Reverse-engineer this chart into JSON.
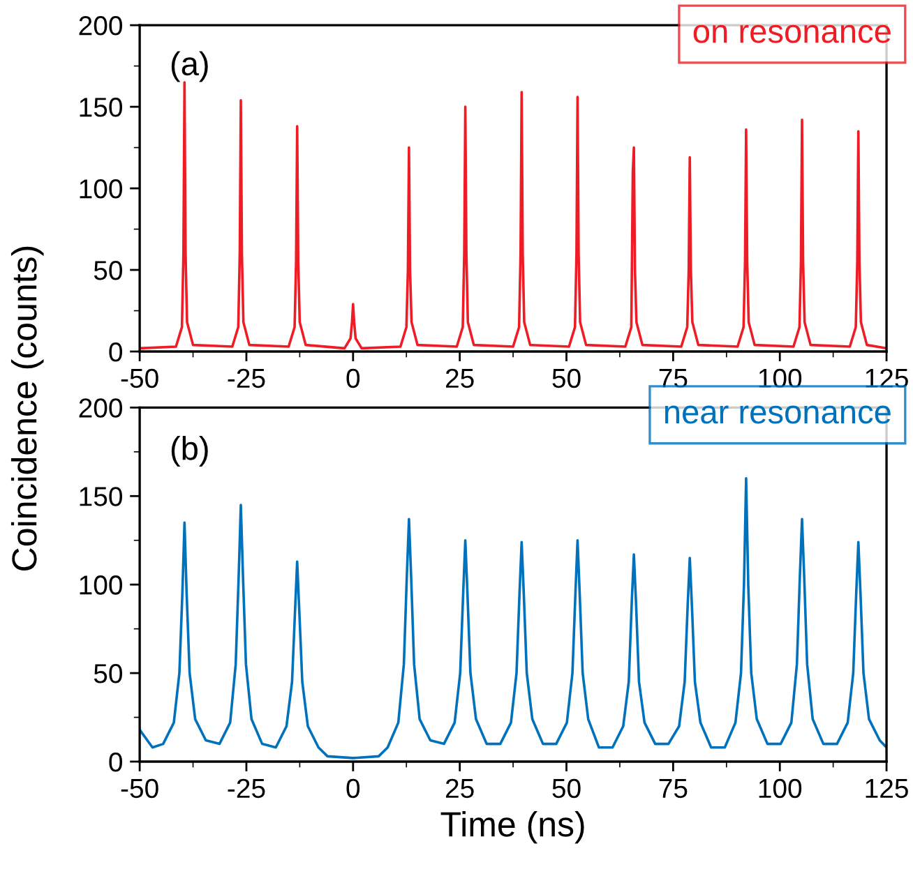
{
  "chart_data": [
    {
      "type": "line",
      "ylabel": "Coincidence (counts)",
      "annotations": [
        "(a)"
      ],
      "legend": "top right",
      "grid": false,
      "xlim": [
        -50,
        125
      ],
      "xticks": [
        -50,
        -25,
        0,
        25,
        50,
        75,
        100,
        125
      ],
      "ylim": [
        0,
        200
      ],
      "yticks": [
        0,
        50,
        100,
        150,
        200
      ],
      "series": [
        {
          "name": "on resonance",
          "color": "#ee1c25",
          "x": [
            -50,
            -41.5,
            -40.1,
            -39.75,
            -39.5,
            -39.25,
            -38.9,
            -37.5,
            -28.3,
            -26.9,
            -26.55,
            -26.3,
            -26.05,
            -25.7,
            -24.3,
            -15.1,
            -13.7,
            -13.35,
            -13.1,
            -12.85,
            -12.5,
            -11.1,
            -2,
            -0.6,
            -0.25,
            0,
            0.25,
            0.6,
            2,
            11.1,
            12.5,
            12.85,
            13.1,
            13.35,
            13.7,
            15.1,
            24.3,
            25.7,
            26.05,
            26.3,
            26.55,
            26.9,
            28.3,
            37.5,
            38.9,
            39.25,
            39.5,
            39.75,
            40.1,
            41.5,
            50.6,
            52.0,
            52.35,
            52.6,
            52.85,
            53.2,
            54.6,
            63.8,
            65.2,
            65.55,
            65.8,
            66.05,
            66.4,
            67.8,
            76.9,
            78.3,
            78.65,
            78.9,
            79.15,
            79.5,
            80.9,
            90.1,
            91.5,
            91.85,
            92.1,
            92.35,
            92.7,
            94.1,
            103.2,
            104.6,
            104.95,
            105.2,
            105.45,
            105.8,
            107.2,
            116.4,
            117.8,
            118.15,
            118.4,
            118.65,
            119.0,
            120.4,
            125
          ],
          "values": [
            2,
            3,
            15,
            60,
            165,
            60,
            18,
            4,
            3,
            15,
            60,
            154,
            60,
            18,
            4,
            3,
            15,
            55,
            138,
            55,
            18,
            4,
            2,
            8,
            18,
            29,
            18,
            8,
            2,
            3,
            15,
            50,
            125,
            50,
            18,
            4,
            3,
            15,
            60,
            150,
            60,
            18,
            4,
            3,
            15,
            60,
            159,
            60,
            18,
            4,
            3,
            15,
            60,
            156,
            60,
            18,
            4,
            3,
            15,
            110,
            125,
            50,
            18,
            4,
            3,
            15,
            50,
            119,
            50,
            18,
            4,
            3,
            15,
            55,
            136,
            55,
            18,
            4,
            3,
            15,
            55,
            142,
            55,
            18,
            4,
            3,
            15,
            55,
            135,
            55,
            18,
            4,
            2
          ]
        }
      ]
    },
    {
      "type": "line",
      "xlabel": "Time (ns)",
      "annotations": [
        "(b)"
      ],
      "legend": "top right",
      "grid": false,
      "xlim": [
        -50,
        125
      ],
      "xticks": [
        -50,
        -25,
        0,
        25,
        50,
        75,
        100,
        125
      ],
      "ylim": [
        0,
        200
      ],
      "yticks": [
        0,
        50,
        100,
        150,
        200
      ],
      "series": [
        {
          "name": "near resonance",
          "color": "#0072bc",
          "x": [
            -50,
            -47,
            -44.5,
            -42,
            -40.7,
            -40,
            -39.5,
            -39,
            -38.3,
            -37,
            -34.5,
            -31.3,
            -28.8,
            -27.5,
            -26.8,
            -26.3,
            -25.8,
            -25.1,
            -23.8,
            -21.3,
            -18.1,
            -15.6,
            -14.3,
            -13.6,
            -13.1,
            -12.6,
            -11.9,
            -10.6,
            -8.1,
            -6,
            0,
            6,
            8.1,
            10.6,
            11.9,
            12.6,
            13.1,
            13.6,
            14.3,
            15.6,
            18.1,
            21.3,
            23.8,
            25.1,
            25.8,
            26.3,
            26.8,
            27.5,
            28.8,
            31.3,
            34.5,
            37,
            38.3,
            39,
            39.5,
            40,
            40.7,
            42,
            44.5,
            47.6,
            50.1,
            51.4,
            52.1,
            52.6,
            53.1,
            53.8,
            55.1,
            57.6,
            60.8,
            63.3,
            64.6,
            65.3,
            65.8,
            66.3,
            67,
            68.3,
            70.8,
            73.9,
            76.4,
            77.7,
            78.4,
            78.9,
            79.4,
            80.1,
            81.4,
            83.9,
            87.1,
            89.6,
            90.9,
            91.6,
            92.1,
            92.6,
            93.3,
            94.6,
            97.1,
            100.2,
            102.7,
            104,
            104.7,
            105.2,
            105.7,
            106.4,
            107.7,
            110.2,
            113.4,
            115.9,
            117.2,
            117.9,
            118.4,
            118.9,
            119.6,
            120.9,
            123.4,
            125
          ],
          "values": [
            18,
            8,
            10,
            22,
            50,
            95,
            135,
            95,
            50,
            24,
            12,
            10,
            22,
            55,
            105,
            145,
            105,
            55,
            24,
            10,
            8,
            20,
            45,
            85,
            113,
            85,
            45,
            20,
            8,
            3,
            2,
            3,
            8,
            22,
            55,
            105,
            137,
            105,
            55,
            24,
            12,
            10,
            22,
            50,
            95,
            125,
            95,
            50,
            24,
            10,
            10,
            22,
            50,
            95,
            124,
            95,
            50,
            24,
            10,
            10,
            22,
            50,
            95,
            125,
            95,
            50,
            24,
            8,
            8,
            20,
            45,
            90,
            117,
            90,
            45,
            22,
            10,
            10,
            20,
            45,
            88,
            115,
            88,
            45,
            22,
            8,
            8,
            22,
            50,
            100,
            160,
            100,
            50,
            24,
            10,
            10,
            22,
            55,
            105,
            137,
            105,
            55,
            24,
            10,
            10,
            22,
            50,
            95,
            124,
            95,
            50,
            24,
            12,
            8
          ]
        }
      ]
    }
  ]
}
